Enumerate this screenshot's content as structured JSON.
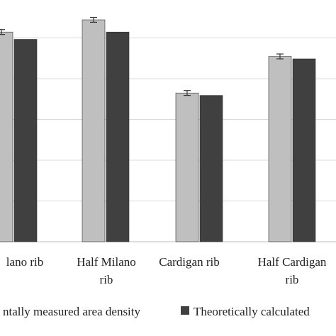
{
  "chart_data": {
    "type": "bar",
    "categories": [
      [
        "Milano rib"
      ],
      [
        "Half Milano",
        "rib"
      ],
      [
        "Cardigan rib"
      ],
      [
        "Half Cardigan",
        "rib"
      ]
    ],
    "category_labels_visible": [
      "lano rib",
      "Half Milano rib",
      "Cardigan rib",
      "Half Cardigan rib"
    ],
    "series": [
      {
        "name": "Experimentally measured area density",
        "visible_name": "ntally measured area density",
        "color": "#bfbfbf",
        "values": [
          0.86,
          0.91,
          0.61,
          0.76
        ],
        "error": [
          0.01,
          0.01,
          0.01,
          0.01
        ]
      },
      {
        "name": "Theoretically calculated area density",
        "visible_name": "Theoretically calculated",
        "color": "#404040",
        "values": [
          0.83,
          0.86,
          0.6,
          0.75
        ]
      }
    ],
    "ylim": [
      0,
      1
    ],
    "grid": true,
    "legend_position": "bottom"
  }
}
